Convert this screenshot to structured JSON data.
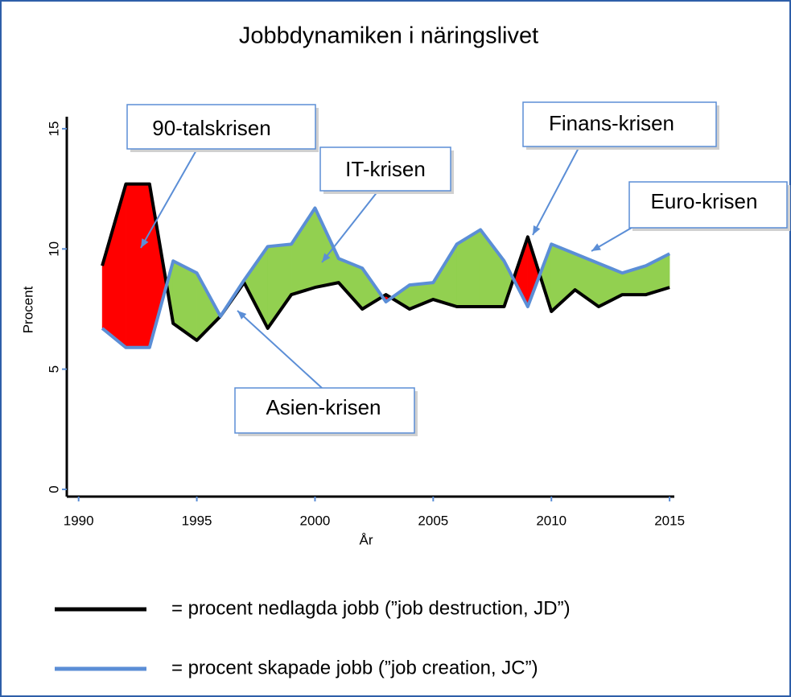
{
  "chart_data": {
    "type": "line",
    "title": "Jobbdynamiken i näringslivet",
    "x_label": "År",
    "y_label": "Procent",
    "x": [
      1991,
      1992,
      1993,
      1994,
      1995,
      1996,
      1997,
      1998,
      1999,
      2000,
      2001,
      2002,
      2003,
      2004,
      2005,
      2006,
      2007,
      2008,
      2009,
      2010,
      2011,
      2012,
      2013,
      2014,
      2015
    ],
    "series": [
      {
        "name": "= procent nedlagda jobb (”job destruction, JD”)",
        "color": "#000000",
        "values": [
          9.3,
          12.7,
          12.7,
          6.9,
          6.2,
          7.2,
          8.6,
          6.7,
          8.1,
          8.4,
          8.6,
          7.5,
          8.1,
          7.5,
          7.9,
          7.6,
          7.6,
          7.6,
          10.5,
          7.4,
          8.3,
          7.6,
          8.1,
          8.1,
          8.4
        ]
      },
      {
        "name": "= procent skapade jobb (”job creation, JC”)",
        "color": "#5b8ed6",
        "values": [
          6.7,
          5.9,
          5.9,
          9.5,
          9.0,
          7.2,
          8.7,
          10.1,
          10.2,
          11.7,
          9.6,
          9.2,
          7.8,
          8.5,
          8.6,
          10.2,
          10.8,
          9.5,
          7.6,
          10.2,
          9.8,
          9.4,
          9.0,
          9.3,
          9.8
        ]
      }
    ],
    "fill_between": {
      "first_above": "#ff0000",
      "second_above": "#92d050"
    },
    "xlim": [
      1989.5,
      2015.2
    ],
    "xticks": [
      1990,
      1995,
      2000,
      2005,
      2010,
      2015
    ],
    "ylim": [
      -0.3,
      15.5
    ],
    "yticks": [
      0,
      5,
      10,
      15
    ],
    "annotations": [
      {
        "text": "90-talskrisen"
      },
      {
        "text": "IT-krisen"
      },
      {
        "text": "Finans-krisen"
      },
      {
        "text": "Euro-krisen"
      },
      {
        "text": "Asien-krisen"
      }
    ]
  }
}
